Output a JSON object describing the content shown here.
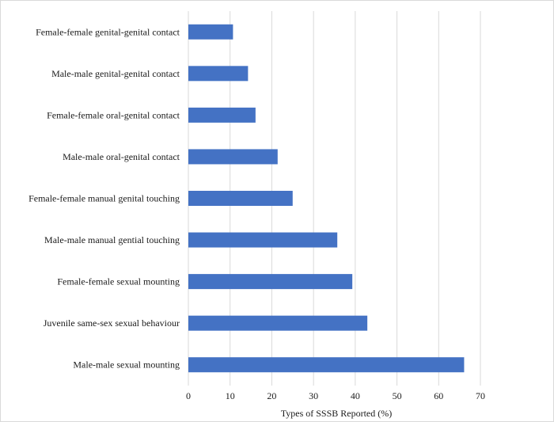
{
  "chart_data": {
    "type": "bar",
    "orientation": "horizontal",
    "categories": [
      "Female-female genital-genital contact",
      "Male-male genital-genital contact",
      "Female-female oral-genital contact",
      "Male-male oral-genital contact",
      "Female-female manual genital touching",
      "Male-male manual gential touching",
      "Female-female sexual mounting",
      "Juvenile same-sex sexual behaviour",
      "Male-male sexual mounting"
    ],
    "values": [
      10.7,
      14.3,
      16.1,
      21.4,
      25.0,
      35.7,
      39.3,
      42.9,
      66.1
    ],
    "title": "",
    "xlabel": "Types of SSSB Reported (%)",
    "ylabel": "",
    "xlim": [
      0,
      70
    ],
    "xticks": [
      0,
      10,
      20,
      30,
      40,
      50,
      60,
      70
    ],
    "grid": true,
    "bar_color": "#4472c4",
    "grid_color": "#d9d9d9"
  }
}
